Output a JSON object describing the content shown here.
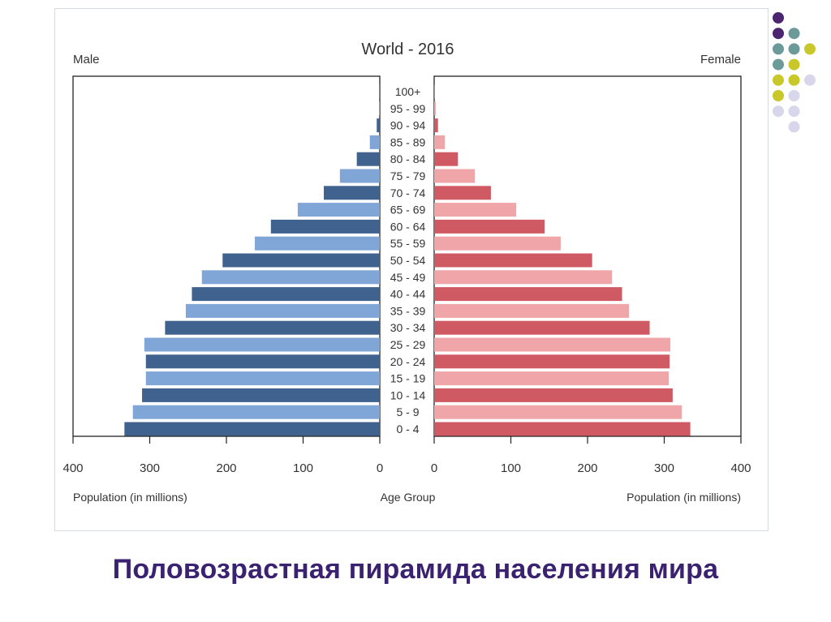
{
  "caption": "Половозрастная пирамида населения мира",
  "colors": {
    "male_dark": "#40628f",
    "male_light": "#7fa6d6",
    "female_dark": "#d05a64",
    "female_light": "#f0a5a8",
    "caption": "#3a2270",
    "dot_purple": "#4b2570",
    "dot_teal": "#6c9a98",
    "dot_olive": "#c8c82a",
    "dot_lavender": "#d7d6ea"
  },
  "decoration": {
    "dot_grid": [
      [
        "purple",
        "",
        "",
        ""
      ],
      [
        "purple",
        "teal",
        "",
        ""
      ],
      [
        "teal",
        "teal",
        "olive",
        ""
      ],
      [
        "teal",
        "olive",
        "",
        ""
      ],
      [
        "olive",
        "olive",
        "lavender",
        ""
      ],
      [
        "olive",
        "lavender",
        "",
        ""
      ],
      [
        "lavender",
        "lavender",
        "",
        ""
      ],
      [
        "",
        "lavender",
        "",
        ""
      ]
    ]
  },
  "chart_data": {
    "type": "bar",
    "title": "World - 2016",
    "left_label": "Male",
    "right_label": "Female",
    "center_xlabel": "Age Group",
    "left_xlabel": "Population (in millions)",
    "right_xlabel": "Population (in millions)",
    "xlim": [
      0,
      400
    ],
    "left_ticks": [
      "400",
      "300",
      "200",
      "100",
      "0"
    ],
    "right_ticks": [
      "0",
      "100",
      "200",
      "300",
      "400"
    ],
    "categories": [
      "100+",
      "95 - 99",
      "90 - 94",
      "85 - 89",
      "80 - 84",
      "75 - 79",
      "70 - 74",
      "65 - 69",
      "60 - 64",
      "55 - 59",
      "50 - 54",
      "45 - 49",
      "40 - 44",
      "35 - 39",
      "30 - 34",
      "25 - 29",
      "20 - 24",
      "15 - 19",
      "10 - 14",
      "5 - 9",
      "0 - 4"
    ],
    "series": [
      {
        "name": "Male",
        "values": [
          0.5,
          1,
          4,
          13,
          30,
          52,
          73,
          107,
          142,
          163,
          205,
          232,
          245,
          253,
          280,
          307,
          305,
          305,
          310,
          322,
          333
        ]
      },
      {
        "name": "Female",
        "values": [
          0.5,
          2,
          5,
          14,
          31,
          53,
          74,
          107,
          144,
          165,
          206,
          232,
          245,
          254,
          281,
          308,
          307,
          306,
          311,
          323,
          334
        ]
      }
    ]
  }
}
